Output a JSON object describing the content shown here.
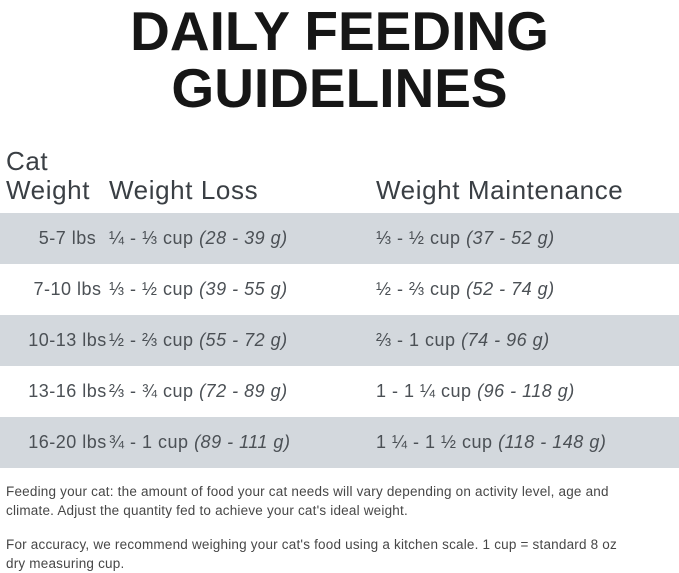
{
  "title": {
    "line1": "DAILY FEEDING",
    "line2": "GUIDELINES"
  },
  "table": {
    "headers": {
      "cat_weight": "Cat\nWeight",
      "weight_loss": "Weight Loss",
      "weight_maintenance": "Weight Maintenance"
    },
    "rows": [
      {
        "cat_weight": "5-7 lbs",
        "weight_loss_cups": "¼ - ⅓ cup",
        "weight_loss_grams": "(28 - 39 g)",
        "weight_maintenance_cups": "⅓ - ½ cup",
        "weight_maintenance_grams": "(37 - 52 g)"
      },
      {
        "cat_weight": "7-10 lbs",
        "weight_loss_cups": "⅓ - ½ cup",
        "weight_loss_grams": "(39 - 55 g)",
        "weight_maintenance_cups": "½ - ⅔ cup",
        "weight_maintenance_grams": "(52 - 74 g)"
      },
      {
        "cat_weight": "10-13 lbs",
        "weight_loss_cups": "½ - ⅔ cup",
        "weight_loss_grams": "(55 - 72 g)",
        "weight_maintenance_cups": "⅔ - 1 cup",
        "weight_maintenance_grams": "(74 - 96 g)"
      },
      {
        "cat_weight": "13-16 lbs",
        "weight_loss_cups": "⅔ - ¾ cup",
        "weight_loss_grams": "(72 - 89 g)",
        "weight_maintenance_cups": "1 - 1 ¼ cup",
        "weight_maintenance_grams": "(96 - 118 g)"
      },
      {
        "cat_weight": "16-20 lbs",
        "weight_loss_cups": "¾ - 1 cup",
        "weight_loss_grams": "(89 - 111 g)",
        "weight_maintenance_cups": "1 ¼ - 1 ½ cup",
        "weight_maintenance_grams": "(118 - 148 g)"
      }
    ]
  },
  "footnotes": [
    {
      "text": "Feeding your cat: the amount of food your cat needs will vary depending on activity level, age and climate. Adjust the quantity fed to achieve your cat's ideal weight.",
      "lines": [
        "Feeding your cat: the amount of food your cat needs will vary depending on activity level, age and",
        "climate. Adjust the quantity fed to achieve your cat's ideal weight."
      ]
    },
    {
      "text": "For accuracy, we recommend weighing your cat's food using a kitchen scale. 1 cup = standard 8 oz dry measuring cup.",
      "lines": [
        "For accuracy, we recommend weighing your cat's food using a kitchen scale. 1 cup = standard 8 oz",
        "dry measuring cup."
      ]
    }
  ],
  "colors": {
    "stripe": "#d3d8dd",
    "title_text": "#161616",
    "header_text": "#3a3f44",
    "body_text": "#4b5055",
    "footnote_text": "#474747",
    "page_bg": "#ffffff"
  }
}
